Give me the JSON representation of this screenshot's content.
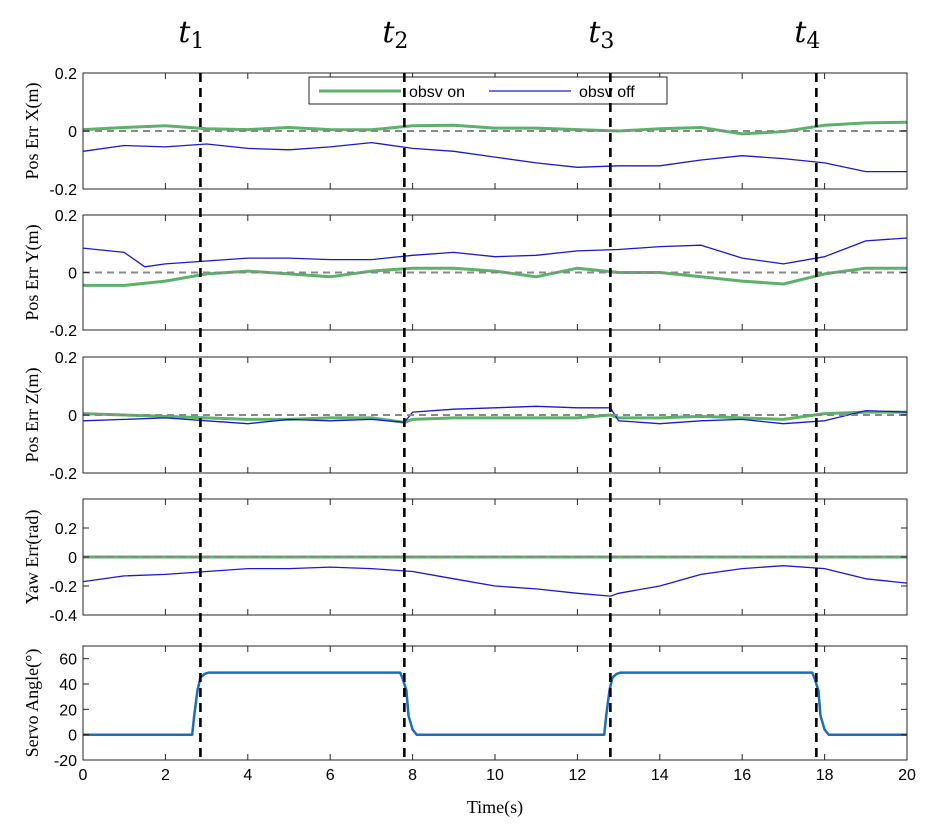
{
  "figure": {
    "time_markers": [
      {
        "base": "t",
        "sub": "1",
        "x": 2.85
      },
      {
        "base": "t",
        "sub": "2",
        "x": 7.8
      },
      {
        "base": "t",
        "sub": "3",
        "x": 12.8
      },
      {
        "base": "t",
        "sub": "4",
        "x": 17.8
      }
    ],
    "xlabel": "Time(s)",
    "colors": {
      "obsv_on": "#5cb26a",
      "obsv_off": "#1a1acc",
      "servo": "#1a6cc4",
      "reference": "#888888"
    }
  },
  "chart_data": [
    {
      "type": "line",
      "ylabel": "Pos Err X(m)",
      "xlim": [
        0,
        20
      ],
      "ylim": [
        -0.2,
        0.2
      ],
      "xticks": [
        0,
        2,
        4,
        6,
        8,
        10,
        12,
        14,
        16,
        18,
        20
      ],
      "yticks": [
        -0.2,
        0,
        0.2
      ],
      "yticklabels": [
        "-0.2",
        "0",
        "0.2"
      ],
      "legend": {
        "position": "top-center",
        "entries": [
          "obsv on",
          "obsv off"
        ]
      },
      "series": [
        {
          "name": "obsv on",
          "x": [
            0,
            1,
            2,
            3,
            4,
            5,
            6,
            7,
            8,
            9,
            10,
            11,
            12,
            13,
            14,
            15,
            16,
            17,
            18,
            19,
            20
          ],
          "y": [
            0.005,
            0.012,
            0.018,
            0.008,
            0.005,
            0.012,
            0.005,
            0.004,
            0.018,
            0.02,
            0.01,
            0.01,
            0.005,
            0.0,
            0.008,
            0.012,
            -0.01,
            -0.002,
            0.02,
            0.028,
            0.03
          ]
        },
        {
          "name": "obsv off",
          "x": [
            0,
            1,
            2,
            3,
            4,
            5,
            6,
            7,
            8,
            9,
            10,
            11,
            12,
            13,
            14,
            15,
            16,
            17,
            18,
            19,
            20
          ],
          "y": [
            -0.07,
            -0.05,
            -0.055,
            -0.045,
            -0.06,
            -0.065,
            -0.055,
            -0.04,
            -0.06,
            -0.07,
            -0.09,
            -0.11,
            -0.125,
            -0.12,
            -0.12,
            -0.1,
            -0.085,
            -0.095,
            -0.11,
            -0.14,
            -0.14
          ]
        },
        {
          "name": "reference",
          "x": [
            0,
            20
          ],
          "y": [
            0,
            0
          ]
        }
      ]
    },
    {
      "type": "line",
      "ylabel": "Pos Err Y(m)",
      "xlim": [
        0,
        20
      ],
      "ylim": [
        -0.2,
        0.2
      ],
      "xticks": [
        0,
        2,
        4,
        6,
        8,
        10,
        12,
        14,
        16,
        18,
        20
      ],
      "yticks": [
        -0.2,
        0,
        0.2
      ],
      "yticklabels": [
        "-0.2",
        "0",
        "0.2"
      ],
      "series": [
        {
          "name": "obsv on",
          "x": [
            0,
            1,
            2,
            3,
            4,
            5,
            6,
            7,
            8,
            9,
            10,
            11,
            12,
            13,
            14,
            15,
            16,
            17,
            18,
            19,
            20
          ],
          "y": [
            -0.045,
            -0.045,
            -0.03,
            -0.005,
            0.005,
            -0.005,
            -0.015,
            0.005,
            0.015,
            0.015,
            0.005,
            -0.015,
            0.015,
            0.0,
            0.0,
            -0.015,
            -0.03,
            -0.04,
            -0.005,
            0.015,
            0.015
          ]
        },
        {
          "name": "obsv off",
          "x": [
            0,
            1,
            1.5,
            2,
            3,
            4,
            5,
            6,
            7,
            8,
            9,
            10,
            11,
            12,
            13,
            14,
            15,
            16,
            17,
            18,
            19,
            20
          ],
          "y": [
            0.085,
            0.07,
            0.02,
            0.03,
            0.04,
            0.05,
            0.05,
            0.045,
            0.045,
            0.06,
            0.07,
            0.055,
            0.06,
            0.075,
            0.08,
            0.09,
            0.095,
            0.05,
            0.03,
            0.055,
            0.11,
            0.12
          ]
        },
        {
          "name": "reference",
          "x": [
            0,
            20
          ],
          "y": [
            0,
            0
          ]
        }
      ]
    },
    {
      "type": "line",
      "ylabel": "Pos Err Z(m)",
      "xlim": [
        0,
        20
      ],
      "ylim": [
        -0.2,
        0.2
      ],
      "xticks": [
        0,
        2,
        4,
        6,
        8,
        10,
        12,
        14,
        16,
        18,
        20
      ],
      "yticks": [
        -0.2,
        0,
        0.2
      ],
      "yticklabels": [
        "-0.2",
        "0",
        "0.2"
      ],
      "series": [
        {
          "name": "obsv on",
          "x": [
            0,
            1,
            2,
            3,
            4,
            5,
            6,
            7,
            7.8,
            8,
            9,
            10,
            11,
            12,
            12.8,
            13,
            14,
            15,
            16,
            17,
            18,
            19,
            20
          ],
          "y": [
            0.005,
            0.0,
            -0.005,
            -0.01,
            -0.015,
            -0.015,
            -0.01,
            -0.01,
            -0.025,
            -0.015,
            -0.01,
            -0.01,
            -0.01,
            -0.01,
            0.0,
            -0.01,
            -0.01,
            -0.005,
            -0.01,
            -0.015,
            0.005,
            0.01,
            0.01
          ]
        },
        {
          "name": "obsv off",
          "x": [
            0,
            1,
            2,
            3,
            4,
            5,
            6,
            7,
            7.8,
            8,
            9,
            10,
            11,
            12,
            12.8,
            13,
            14,
            15,
            16,
            17,
            18,
            19,
            20
          ],
          "y": [
            -0.02,
            -0.015,
            -0.01,
            -0.02,
            -0.03,
            -0.015,
            -0.02,
            -0.015,
            -0.025,
            0.01,
            0.02,
            0.025,
            0.03,
            0.025,
            0.025,
            -0.02,
            -0.03,
            -0.02,
            -0.015,
            -0.03,
            -0.02,
            0.015,
            0.01
          ]
        },
        {
          "name": "reference",
          "x": [
            0,
            20
          ],
          "y": [
            0,
            0
          ]
        }
      ]
    },
    {
      "type": "line",
      "ylabel": "Yaw Err(rad)",
      "xlim": [
        0,
        20
      ],
      "ylim": [
        -0.4,
        0.4
      ],
      "xticks": [
        0,
        2,
        4,
        6,
        8,
        10,
        12,
        14,
        16,
        18,
        20
      ],
      "yticks": [
        -0.4,
        -0.2,
        0,
        0.2
      ],
      "yticklabels": [
        "-0.4",
        "-0.2",
        "0",
        "0.2"
      ],
      "series": [
        {
          "name": "obsv on",
          "x": [
            0,
            2,
            4,
            6,
            8,
            10,
            12,
            14,
            16,
            18,
            20
          ],
          "y": [
            0.0,
            0.0,
            0.0,
            0.0,
            0.0,
            0.0,
            0.0,
            0.0,
            0.0,
            0.0,
            0.0
          ]
        },
        {
          "name": "obsv off",
          "x": [
            0,
            1,
            2,
            3,
            4,
            5,
            6,
            7,
            8,
            9,
            10,
            11,
            12,
            12.8,
            13,
            14,
            15,
            16,
            17,
            18,
            19,
            20
          ],
          "y": [
            -0.17,
            -0.13,
            -0.12,
            -0.1,
            -0.08,
            -0.08,
            -0.07,
            -0.08,
            -0.1,
            -0.15,
            -0.2,
            -0.22,
            -0.25,
            -0.27,
            -0.25,
            -0.2,
            -0.12,
            -0.08,
            -0.06,
            -0.08,
            -0.15,
            -0.18
          ]
        },
        {
          "name": "reference",
          "x": [
            0,
            20
          ],
          "y": [
            0,
            0
          ]
        }
      ]
    },
    {
      "type": "line",
      "ylabel": "Servo Angle(°)",
      "xlim": [
        0,
        20
      ],
      "ylim": [
        -20,
        70
      ],
      "xticks": [
        0,
        2,
        4,
        6,
        8,
        10,
        12,
        14,
        16,
        18,
        20
      ],
      "yticks": [
        -20,
        0,
        20,
        40,
        60
      ],
      "yticklabels": [
        "-20",
        "0",
        "20",
        "40",
        "60"
      ],
      "xticklabels": [
        "0",
        "2",
        "4",
        "6",
        "8",
        "10",
        "12",
        "14",
        "16",
        "18",
        "20"
      ],
      "series": [
        {
          "name": "servo",
          "x": [
            0,
            2.65,
            2.7,
            2.78,
            2.85,
            2.95,
            3.05,
            7.7,
            7.75,
            7.85,
            7.9,
            8.0,
            8.1,
            12.65,
            12.7,
            12.78,
            12.85,
            12.95,
            13.05,
            17.7,
            17.75,
            17.85,
            17.9,
            18.0,
            18.1,
            20
          ],
          "y": [
            0,
            0,
            15,
            35,
            45,
            48,
            49,
            49,
            45,
            35,
            15,
            4,
            0,
            0,
            15,
            35,
            45,
            48,
            49,
            49,
            45,
            35,
            15,
            4,
            0,
            0
          ]
        }
      ]
    }
  ]
}
